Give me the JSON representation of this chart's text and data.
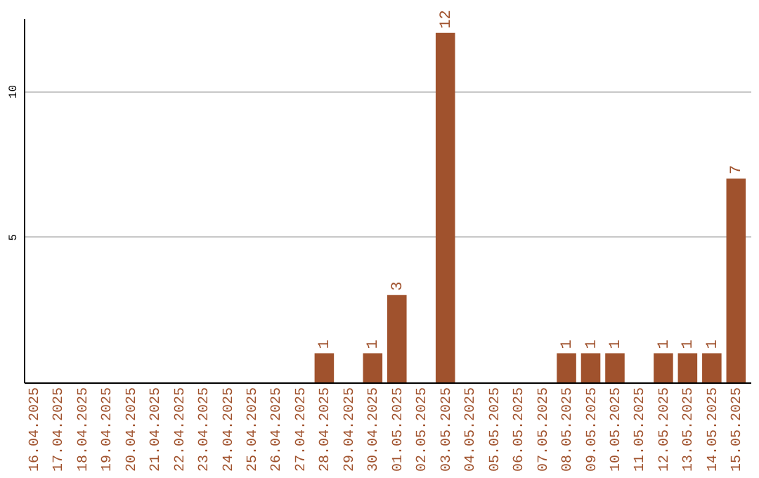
{
  "chart_data": {
    "type": "bar",
    "categories": [
      "16.04.2025",
      "17.04.2025",
      "18.04.2025",
      "19.04.2025",
      "20.04.2025",
      "21.04.2025",
      "22.04.2025",
      "23.04.2025",
      "24.04.2025",
      "25.04.2025",
      "26.04.2025",
      "27.04.2025",
      "28.04.2025",
      "29.04.2025",
      "30.04.2025",
      "01.05.2025",
      "02.05.2025",
      "03.05.2025",
      "04.05.2025",
      "05.05.2025",
      "06.05.2025",
      "07.05.2025",
      "08.05.2025",
      "09.05.2025",
      "10.05.2025",
      "11.05.2025",
      "12.05.2025",
      "13.05.2025",
      "14.05.2025",
      "15.05.2025"
    ],
    "values": [
      0,
      0,
      0,
      0,
      0,
      0,
      0,
      0,
      0,
      0,
      0,
      0,
      1,
      0,
      1,
      3,
      0,
      12,
      0,
      0,
      0,
      0,
      1,
      1,
      1,
      0,
      1,
      1,
      1,
      7
    ],
    "value_labels": [
      null,
      null,
      null,
      null,
      null,
      null,
      null,
      null,
      null,
      null,
      null,
      null,
      "1",
      null,
      "1",
      "3",
      null,
      "12",
      null,
      null,
      null,
      null,
      "1",
      "1",
      "1",
      null,
      "1",
      "1",
      "1",
      "7"
    ],
    "color": "#a0522d",
    "ylim": [
      0,
      12.5
    ],
    "yticks": [
      5,
      10
    ],
    "grid": "y"
  }
}
